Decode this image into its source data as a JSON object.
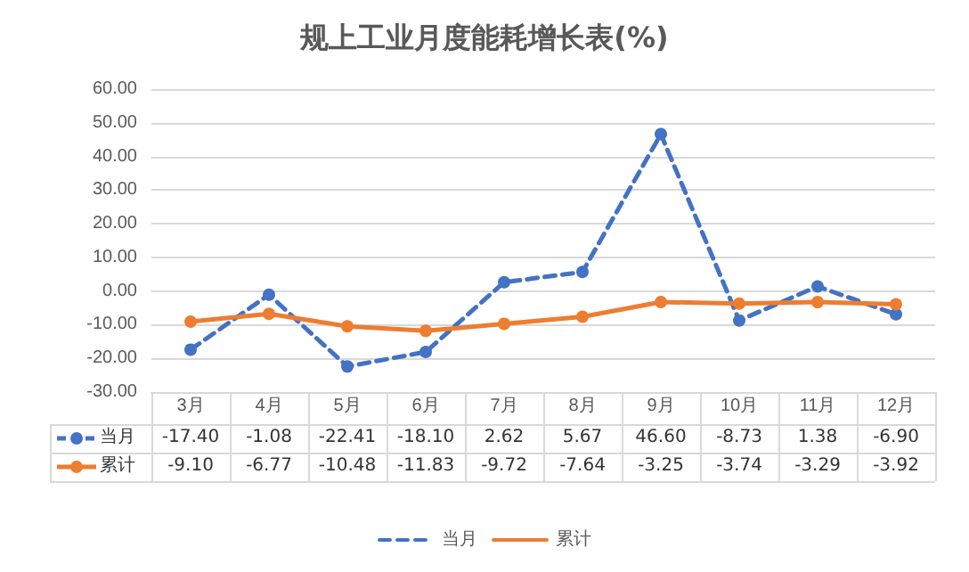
{
  "chart_data": {
    "type": "line",
    "title": "规上工业月度能耗增长表(%)",
    "categories": [
      "3月",
      "4月",
      "5月",
      "6月",
      "7月",
      "8月",
      "9月",
      "10月",
      "11月",
      "12月"
    ],
    "series": [
      {
        "name": "当月",
        "color": "#4472c4",
        "line_style": "dashed",
        "values": [
          -17.4,
          -1.08,
          -22.41,
          -18.1,
          2.62,
          5.67,
          46.6,
          -8.73,
          1.38,
          -6.9
        ],
        "value_labels": [
          "-17.40",
          "-1.08",
          "-22.41",
          "-18.10",
          "2.62",
          "5.67",
          "46.60",
          "-8.73",
          "1.38",
          "-6.90"
        ]
      },
      {
        "name": "累计",
        "color": "#ed7d31",
        "line_style": "solid",
        "values": [
          -9.1,
          -6.77,
          -10.48,
          -11.83,
          -9.72,
          -7.64,
          -3.25,
          -3.74,
          -3.29,
          -3.92
        ],
        "value_labels": [
          "-9.10",
          "-6.77",
          "-10.48",
          "-11.83",
          "-9.72",
          "-7.64",
          "-3.25",
          "-3.74",
          "-3.29",
          "-3.92"
        ]
      }
    ],
    "ylim": [
      -30,
      60
    ],
    "yticks": [
      {
        "value": -30,
        "label": "-30.00"
      },
      {
        "value": -20,
        "label": "-20.00"
      },
      {
        "value": -10,
        "label": "-10.00"
      },
      {
        "value": 0,
        "label": "0.00"
      },
      {
        "value": 10,
        "label": "10.00"
      },
      {
        "value": 20,
        "label": "20.00"
      },
      {
        "value": 30,
        "label": "30.00"
      },
      {
        "value": 40,
        "label": "40.00"
      },
      {
        "value": 50,
        "label": "50.00"
      },
      {
        "value": 60,
        "label": "60.00"
      }
    ],
    "grid": "y",
    "legend": "bottom",
    "marker": "circle",
    "data_labels": true
  }
}
